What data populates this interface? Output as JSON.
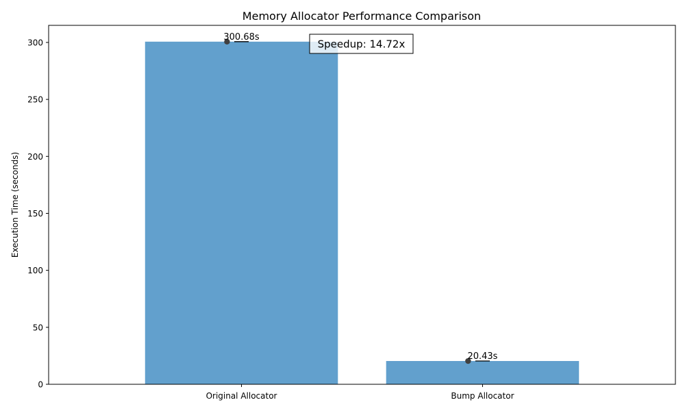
{
  "chart_data": {
    "type": "bar",
    "title": "Memory Allocator Performance Comparison",
    "xlabel": "",
    "ylabel": "Execution Time (seconds)",
    "categories": [
      "Original Allocator",
      "Bump Allocator"
    ],
    "values": [
      300.68,
      20.43
    ],
    "value_labels": [
      "300.68s",
      "20.43s"
    ],
    "ylim": [
      0,
      315
    ],
    "yticks": [
      0,
      50,
      100,
      150,
      200,
      250,
      300
    ],
    "grid": false,
    "annotation": "Speedup: 14.72x",
    "colors": {
      "bar": "#62a0cd",
      "point": "#404040",
      "text": "#000000"
    }
  }
}
